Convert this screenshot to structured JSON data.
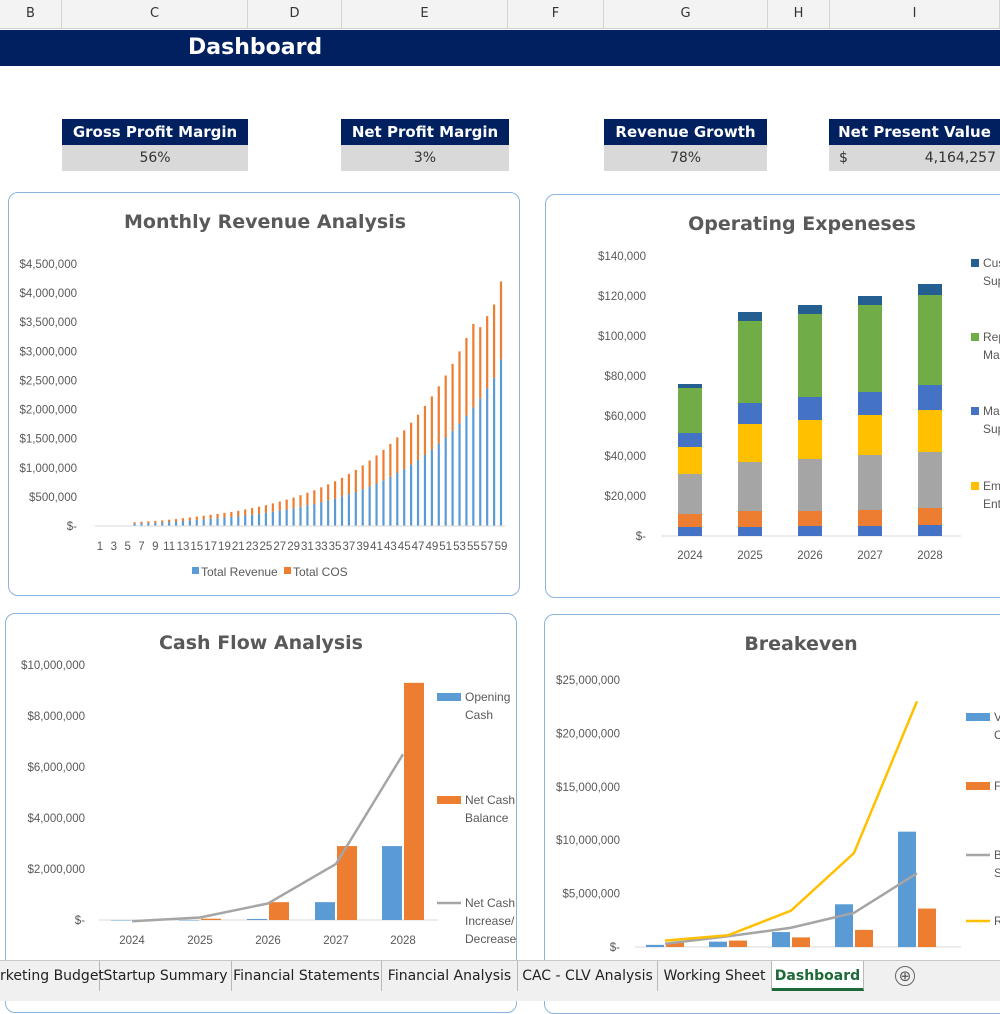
{
  "columns": [
    "B",
    "C",
    "D",
    "E",
    "F",
    "G",
    "H",
    "I"
  ],
  "title": "Dashboard",
  "kpis": [
    {
      "label": "Gross Profit Margin",
      "value": "56%"
    },
    {
      "label": "Net Profit Margin",
      "value": "3%"
    },
    {
      "label": "Revenue Growth",
      "value": "78%"
    },
    {
      "label": "Net Present Value",
      "currency": "$",
      "value": "4,164,257"
    }
  ],
  "charts": {
    "revenue": {
      "title": "Monthly Revenue Analysis",
      "yticks": [
        "$4,500,000",
        "$4,000,000",
        "$3,500,000",
        "$3,000,000",
        "$2,500,000",
        "$2,000,000",
        "$1,500,000",
        "$1,000,000",
        "$500,000",
        "$-"
      ],
      "xticks": [
        "1",
        "3",
        "5",
        "7",
        "9",
        "11",
        "13",
        "15",
        "17",
        "19",
        "21",
        "23",
        "25",
        "27",
        "29",
        "31",
        "33",
        "35",
        "37",
        "39",
        "41",
        "43",
        "45",
        "47",
        "49",
        "51",
        "53",
        "55",
        "57",
        "59"
      ],
      "legend": [
        "Total Revenue",
        "Total COS"
      ],
      "colors": {
        "revenue": "#5b9bd5",
        "cos": "#ed7d31"
      }
    },
    "opex": {
      "title": "Operating Expeneses",
      "yticks": [
        "$140,000",
        "$120,000",
        "$100,000",
        "$80,000",
        "$60,000",
        "$40,000",
        "$20,000",
        "$-"
      ],
      "legend": [
        {
          "lines": [
            "Cust",
            "Supp"
          ],
          "color": "#255e91"
        },
        {
          "lines": [
            "Repa",
            "Main"
          ],
          "color": "#70ad47"
        },
        {
          "lines": [
            "Mac",
            "Supp"
          ],
          "color": "#4472c4"
        },
        {
          "lines": [
            "Emp",
            "Ente"
          ],
          "color": "#ffc000"
        }
      ]
    },
    "cashflow": {
      "title": "Cash Flow Analysis",
      "yticks": [
        "$10,000,000",
        "$8,000,000",
        "$6,000,000",
        "$4,000,000",
        "$2,000,000",
        "$-"
      ],
      "legend": [
        {
          "lines": [
            "Opening",
            "Cash"
          ],
          "color": "#5b9bd5"
        },
        {
          "lines": [
            "Net Cash",
            "Balance"
          ],
          "color": "#ed7d31"
        },
        {
          "lines": [
            "Net Cash",
            "Increase/",
            "Decrease"
          ],
          "color": "#a5a5a5"
        }
      ]
    },
    "breakeven": {
      "title": "Breakeven",
      "yticks": [
        "$25,000,000",
        "$20,000,000",
        "$15,000,000",
        "$10,000,000",
        "$5,000,000",
        "$-"
      ],
      "legend": [
        {
          "lines": [
            "V",
            "C"
          ],
          "color": "#5b9bd5"
        },
        {
          "lines": [
            "F"
          ],
          "color": "#ed7d31"
        },
        {
          "lines": [
            "B",
            "S"
          ],
          "color": "#a5a5a5"
        },
        {
          "lines": [
            "R"
          ],
          "color": "#ffc000"
        }
      ]
    }
  },
  "chart_data": [
    {
      "type": "bar",
      "title": "Monthly Revenue Analysis",
      "note": "stacked columns, 59 months",
      "x": [
        1,
        2,
        3,
        4,
        5,
        6,
        7,
        8,
        9,
        10,
        11,
        12,
        13,
        14,
        15,
        16,
        17,
        18,
        19,
        20,
        21,
        22,
        23,
        24,
        25,
        26,
        27,
        28,
        29,
        30,
        31,
        32,
        33,
        34,
        35,
        36,
        37,
        38,
        39,
        40,
        41,
        42,
        43,
        44,
        45,
        46,
        47,
        48,
        49,
        50,
        51,
        52,
        53,
        54,
        55,
        56,
        57,
        58,
        59
      ],
      "series": [
        {
          "name": "Total Revenue",
          "values": [
            0,
            0,
            0,
            0,
            0,
            40000,
            45000,
            50000,
            55000,
            60000,
            68000,
            75000,
            85000,
            95000,
            105000,
            115000,
            125000,
            135000,
            145000,
            155000,
            165000,
            180000,
            195000,
            210000,
            225000,
            245000,
            265000,
            285000,
            305000,
            330000,
            355000,
            380000,
            410000,
            440000,
            470000,
            505000,
            545000,
            585000,
            630000,
            680000,
            730000,
            785000,
            845000,
            910000,
            980000,
            1055000,
            1135000,
            1220000,
            1315000,
            1415000,
            1520000,
            1635000,
            1760000,
            1895000,
            2040000,
            2195000,
            2365000,
            2545000,
            2860000
          ]
        },
        {
          "name": "Total COS",
          "values": [
            0,
            0,
            0,
            0,
            0,
            25000,
            28000,
            30000,
            33000,
            36000,
            40000,
            44000,
            48000,
            52000,
            57000,
            62000,
            68000,
            74000,
            80000,
            87000,
            95000,
            103000,
            112000,
            122000,
            133000,
            144000,
            156000,
            169000,
            183000,
            199000,
            216000,
            234000,
            254000,
            275000,
            298000,
            323000,
            350000,
            379000,
            411000,
            445000,
            482000,
            522000,
            565000,
            612000,
            663000,
            718000,
            777000,
            841000,
            911000,
            985000,
            1065000,
            1150000,
            1240000,
            1335000,
            1430000,
            1220000,
            1240000,
            1260000,
            1340000
          ]
        }
      ],
      "ylim": [
        0,
        4500000
      ]
    },
    {
      "type": "bar",
      "title": "Operating Expeneses",
      "note": "stacked columns",
      "categories": [
        "2024",
        "2025",
        "2026",
        "2027",
        "2028"
      ],
      "series": [
        {
          "values": [
            4500,
            4500,
            5000,
            5000,
            5500
          ],
          "color": "#4472c4"
        },
        {
          "values": [
            6500,
            8000,
            7500,
            8000,
            8500
          ],
          "color": "#ed7d31"
        },
        {
          "values": [
            20000,
            24500,
            26000,
            27500,
            28000
          ],
          "color": "#a5a5a5"
        },
        {
          "values": [
            13500,
            19000,
            19500,
            20000,
            21000
          ],
          "color": "#ffc000"
        },
        {
          "values": [
            7000,
            10500,
            11500,
            11500,
            12500
          ],
          "color": "#4472c4"
        },
        {
          "values": [
            22500,
            41000,
            41500,
            43500,
            45000
          ],
          "color": "#70ad47"
        },
        {
          "values": [
            2000,
            4500,
            4500,
            4500,
            5500
          ],
          "color": "#255e91"
        }
      ],
      "ylim": [
        0,
        140000
      ]
    },
    {
      "type": "bar",
      "title": "Cash Flow Analysis",
      "categories": [
        "2024",
        "2025",
        "2026",
        "2027",
        "2028"
      ],
      "series": [
        {
          "name": "Opening Cash",
          "values": [
            0,
            0,
            40000,
            700000,
            2900000
          ]
        },
        {
          "name": "Net Cash Balance",
          "values": [
            -50000,
            50000,
            700000,
            2900000,
            9300000
          ]
        },
        {
          "name": "Net Cash Increase/ Decrease",
          "type": "line",
          "values": [
            -50000,
            100000,
            650000,
            2200000,
            6500000
          ]
        }
      ],
      "ylim": [
        0,
        10000000
      ]
    },
    {
      "type": "bar",
      "title": "Breakeven",
      "categories": [
        "2024",
        "2025",
        "2026",
        "2027",
        "2028"
      ],
      "series": [
        {
          "type": "bar",
          "values": [
            200000,
            500000,
            1400000,
            4000000,
            10800000
          ],
          "color": "#5b9bd5"
        },
        {
          "type": "bar",
          "values": [
            400000,
            600000,
            900000,
            1600000,
            3600000
          ],
          "color": "#ed7d31"
        },
        {
          "type": "line",
          "values": [
            300000,
            1000000,
            1800000,
            3200000,
            6900000
          ],
          "color": "#a5a5a5"
        },
        {
          "type": "line",
          "values": [
            600000,
            1100000,
            3400000,
            8800000,
            23000000
          ],
          "color": "#ffc000"
        }
      ],
      "ylim": [
        0,
        25000000
      ]
    }
  ],
  "tabs": [
    "rketing Budget",
    "Startup Summary",
    "Financial Statements",
    "Financial Analysis",
    "CAC - CLV Analysis",
    "Working Sheet",
    "Dashboard"
  ],
  "active_tab": "Dashboard",
  "add_sheet_icon": "⊕"
}
